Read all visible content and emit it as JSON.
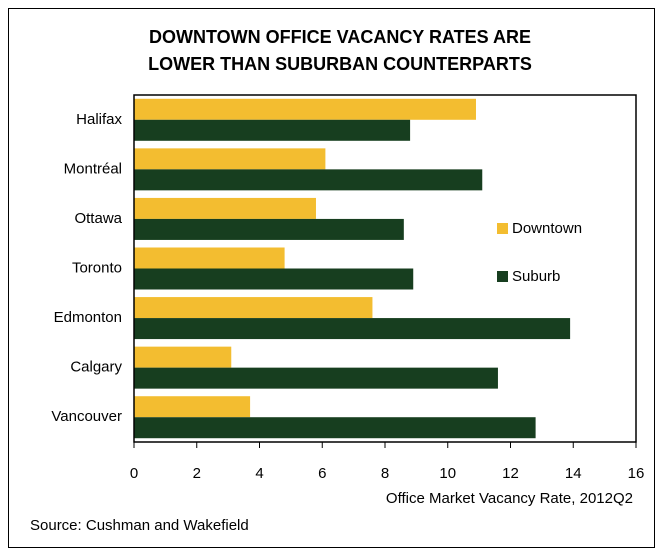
{
  "chart_data": {
    "type": "hbar",
    "title": [
      "DOWNTOWN OFFICE VACANCY RATES ARE",
      "LOWER THAN SUBURBAN COUNTERPARTS"
    ],
    "categories": [
      "Halifax",
      "Montréal",
      "Ottawa",
      "Toronto",
      "Edmonton",
      "Calgary",
      "Vancouver"
    ],
    "series": [
      {
        "name": "Downtown",
        "color": "#f3bd30",
        "values": [
          10.9,
          6.1,
          5.8,
          4.8,
          7.6,
          3.1,
          3.7
        ]
      },
      {
        "name": "Suburb",
        "color": "#173e1f",
        "values": [
          8.8,
          11.1,
          8.6,
          8.9,
          13.9,
          11.6,
          12.8
        ]
      }
    ],
    "xlim": [
      0,
      16
    ],
    "xticks": [
      0,
      2,
      4,
      6,
      8,
      10,
      12,
      14,
      16
    ],
    "x_label": "Office Market Vacancy Rate, 2012Q2",
    "source": "Source: Cushman and Wakefield",
    "legend": "right"
  }
}
